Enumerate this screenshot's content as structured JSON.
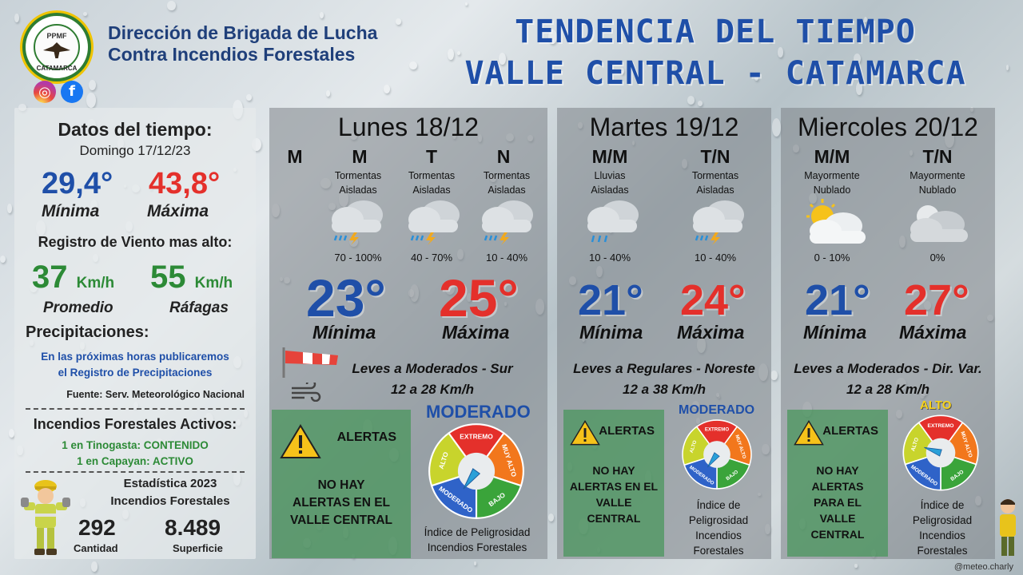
{
  "header": {
    "org_line1": "Dirección de Brigada de Lucha",
    "org_line2": "Contra Incendios Forestales",
    "logo_top": "PPMF",
    "logo_bottom": "CATAMARCA",
    "title_line1": "TENDENCIA DEL TIEMPO",
    "title_line2": "VALLE CENTRAL - CATAMARCA",
    "social_icons": [
      "instagram-icon",
      "facebook-icon"
    ]
  },
  "summary": {
    "title": "Datos del tiempo:",
    "date": "Domingo 17/12/23",
    "min": "29,4°",
    "max": "43,8°",
    "min_label": "Mínima",
    "max_label": "Máxima",
    "wind_title": "Registro de Viento mas alto:",
    "wind_avg": "37",
    "wind_gust": "55",
    "wind_unit": "Km/h",
    "wind_avg_label": "Promedio",
    "wind_gust_label": "Ráfagas",
    "precip_title": "Precipitaciones:",
    "precip_line1": "En las próximas horas publicaremos",
    "precip_line2": "el Registro de Precipitaciones",
    "source": "Fuente: Serv. Meteorológico Nacional",
    "fires_title": "Incendios Forestales Activos:",
    "fire1": "1 en Tinogasta: CONTENIDO",
    "fire2": "1 en Capayan: ACTIVO",
    "stats_line1": "Estadística 2023",
    "stats_line2": "Incendios Forestales",
    "count": "292",
    "count_label": "Cantidad",
    "area": "8.489",
    "area_label": "Superficie"
  },
  "days": [
    {
      "title": "Lunes 18/12",
      "periods": [
        {
          "label": "M",
          "cond": "",
          "prob": ""
        },
        {
          "label": "M",
          "cond1": "Tormentas",
          "cond2": "Aisladas",
          "prob": "70 - 100%"
        },
        {
          "label": "T",
          "cond1": "Tormentas",
          "cond2": "Aisladas",
          "prob": "40 - 70%"
        },
        {
          "label": "N",
          "cond1": "Tormentas",
          "cond2": "Aisladas",
          "prob": "10 - 40%"
        }
      ],
      "min": "23°",
      "max": "25°",
      "min_label": "Mínima",
      "max_label": "Máxima",
      "wind_line1": "Leves a Moderados - Sur",
      "wind_line2": "12 a 28 Km/h",
      "alert_title": "ALERTAS",
      "alert_l1": "NO HAY",
      "alert_l2": "ALERTAS EN EL",
      "alert_l3": "VALLE CENTRAL",
      "danger_level": "MODERADO",
      "danger_l1": "Índice de Peligrosidad",
      "danger_l2": "Incendios Forestales"
    },
    {
      "title": "Martes 19/12",
      "periods": [
        {
          "label": "M/M",
          "cond1": "Lluvias",
          "cond2": "Aisladas",
          "prob": "10 - 40%"
        },
        {
          "label": "T/N",
          "cond1": "Tormentas",
          "cond2": "Aisladas",
          "prob": "10 - 40%"
        }
      ],
      "min": "21°",
      "max": "24°",
      "min_label": "Mínima",
      "max_label": "Máxima",
      "wind_line1": "Leves a Regulares - Noreste",
      "wind_line2": "12 a 38 Km/h",
      "alert_title": "ALERTAS",
      "alert_l1": "NO HAY",
      "alert_l2": "ALERTAS EN EL",
      "alert_l3": "VALLE",
      "alert_l4": "CENTRAL",
      "danger_level": "MODERADO",
      "danger_l1": "Índice de",
      "danger_l2": "Peligrosidad",
      "danger_l3": "Incendios",
      "danger_l4": "Forestales"
    },
    {
      "title": "Miercoles 20/12",
      "periods": [
        {
          "label": "M/M",
          "cond1": "Mayormente",
          "cond2": "Nublado",
          "prob": "0 - 10%"
        },
        {
          "label": "T/N",
          "cond1": "Mayormente",
          "cond2": "Nublado",
          "prob": "0%"
        }
      ],
      "min": "21°",
      "max": "27°",
      "min_label": "Mínima",
      "max_label": "Máxima",
      "wind_line1": "Leves a Moderados - Dir. Var.",
      "wind_line2": "12 a 28 Km/h",
      "alert_title": "ALERTAS",
      "alert_l1": "NO HAY",
      "alert_l2": "ALERTAS",
      "alert_l3": "PARA EL",
      "alert_l4": "VALLE",
      "alert_l5": "CENTRAL",
      "danger_level": "ALTO",
      "danger_l1": "Índice de",
      "danger_l2": "Peligrosidad",
      "danger_l3": "Incendios",
      "danger_l4": "Forestales"
    }
  ],
  "gauge_sectors": [
    "EXTREMO",
    "MUY ALTO",
    "BAJO",
    "MODERADO",
    "ALTO"
  ],
  "credit": "@meteo.charly",
  "colors": {
    "blue": "#1f4fa8",
    "red": "#e4302b",
    "green": "#2c8a36"
  }
}
